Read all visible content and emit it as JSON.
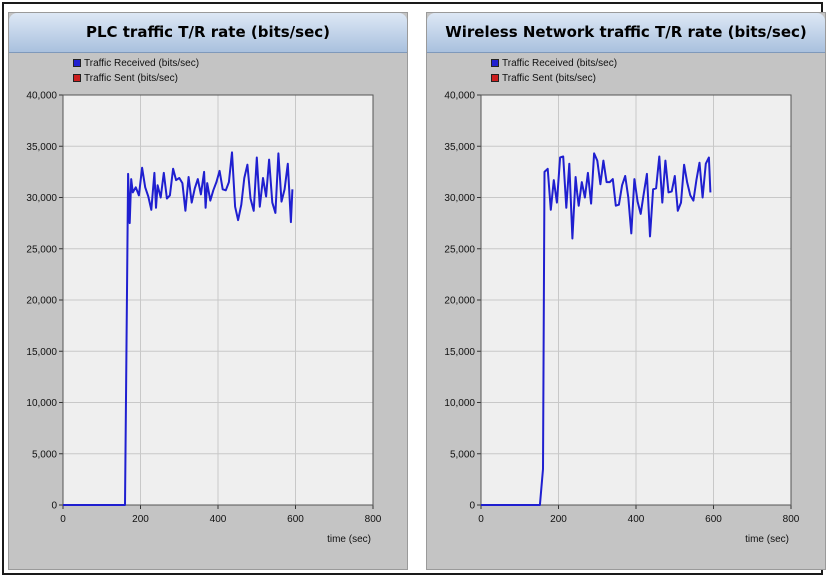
{
  "charts": [
    {
      "title": "PLC traffic T/R rate (bits/sec)",
      "legend": [
        {
          "label": "Traffic Received (bits/sec)",
          "color": "#1f1fd0"
        },
        {
          "label": "Traffic Sent (bits/sec)",
          "color": "#cc1f1f"
        }
      ]
    },
    {
      "title": "Wireless Network traffic T/R rate (bits/sec)",
      "legend": [
        {
          "label": "Traffic Received (bits/sec)",
          "color": "#1f1fd0"
        },
        {
          "label": "Traffic Sent (bits/sec)",
          "color": "#cc1f1f"
        }
      ]
    }
  ],
  "chart_data": [
    {
      "type": "line",
      "title": "PLC traffic T/R rate (bits/sec)",
      "xlabel": "time (sec)",
      "ylabel": "",
      "xlim": [
        0,
        800
      ],
      "ylim": [
        0,
        40000
      ],
      "x_ticks": [
        "0",
        "200",
        "400",
        "600",
        "800"
      ],
      "y_ticks": [
        "0",
        "5,000",
        "10,000",
        "15,000",
        "20,000",
        "25,000",
        "30,000",
        "35,000",
        "40,000"
      ],
      "grid": true,
      "legend_position": "top-left",
      "series": [
        {
          "name": "Traffic Received (bits/sec)",
          "color": "#1f1fd0",
          "x": [
            0,
            160,
            168,
            172,
            176,
            180,
            188,
            196,
            204,
            212,
            220,
            228,
            236,
            240,
            244,
            252,
            260,
            268,
            276,
            284,
            292,
            300,
            308,
            316,
            324,
            332,
            340,
            348,
            356,
            364,
            368,
            372,
            380,
            388,
            396,
            404,
            412,
            420,
            428,
            436,
            444,
            452,
            460,
            468,
            476,
            484,
            492,
            500,
            508,
            516,
            524,
            532,
            540,
            548,
            556,
            564,
            572,
            580,
            588,
            592
          ],
          "y": [
            0,
            0,
            32300,
            27500,
            31800,
            30500,
            31000,
            30200,
            32900,
            31000,
            30100,
            28800,
            32400,
            29000,
            31200,
            30000,
            32400,
            29900,
            30200,
            32800,
            31700,
            31900,
            31400,
            28700,
            32000,
            29500,
            30900,
            31800,
            30300,
            32500,
            29000,
            31400,
            29700,
            30700,
            31500,
            32600,
            30800,
            30700,
            31500,
            34400,
            29100,
            27800,
            29300,
            31900,
            33200,
            29900,
            28700,
            33900,
            29100,
            31900,
            30100,
            33700,
            29500,
            28500,
            34300,
            29600,
            30800,
            33300,
            27600,
            30800
          ]
        },
        {
          "name": "Traffic Sent (bits/sec)",
          "color": "#cc1f1f",
          "x": [],
          "y": []
        }
      ]
    },
    {
      "type": "line",
      "title": "Wireless Network traffic T/R rate (bits/sec)",
      "xlabel": "time (sec)",
      "ylabel": "",
      "xlim": [
        0,
        800
      ],
      "ylim": [
        0,
        40000
      ],
      "x_ticks": [
        "0",
        "200",
        "400",
        "600",
        "800"
      ],
      "y_ticks": [
        "0",
        "5,000",
        "10,000",
        "15,000",
        "20,000",
        "25,000",
        "30,000",
        "35,000",
        "40,000"
      ],
      "grid": true,
      "legend_position": "top-left",
      "series": [
        {
          "name": "Traffic Received (bits/sec)",
          "color": "#1f1fd0",
          "x": [
            0,
            152,
            160,
            164,
            172,
            180,
            188,
            196,
            204,
            212,
            220,
            228,
            236,
            244,
            248,
            252,
            260,
            268,
            276,
            284,
            292,
            300,
            308,
            316,
            324,
            332,
            340,
            348,
            356,
            364,
            372,
            380,
            388,
            396,
            404,
            412,
            420,
            428,
            436,
            444,
            452,
            460,
            468,
            476,
            484,
            492,
            500,
            508,
            516,
            524,
            532,
            540,
            548,
            556,
            564,
            572,
            580,
            588,
            592
          ],
          "y": [
            0,
            0,
            3500,
            32500,
            32800,
            28800,
            31700,
            29500,
            33900,
            34000,
            29000,
            33300,
            26000,
            32000,
            30500,
            29200,
            31500,
            30000,
            32400,
            29400,
            34300,
            33600,
            31300,
            33600,
            31500,
            31500,
            31800,
            29200,
            29300,
            31200,
            32100,
            30000,
            26500,
            31800,
            29600,
            28400,
            30400,
            32300,
            26200,
            30800,
            30900,
            34000,
            29500,
            33600,
            30500,
            30600,
            32100,
            28700,
            29500,
            33200,
            31500,
            30200,
            29700,
            31700,
            33400,
            30000,
            33300,
            33900,
            30500
          ]
        },
        {
          "name": "Traffic Sent (bits/sec)",
          "color": "#cc1f1f",
          "x": [],
          "y": []
        }
      ]
    }
  ]
}
